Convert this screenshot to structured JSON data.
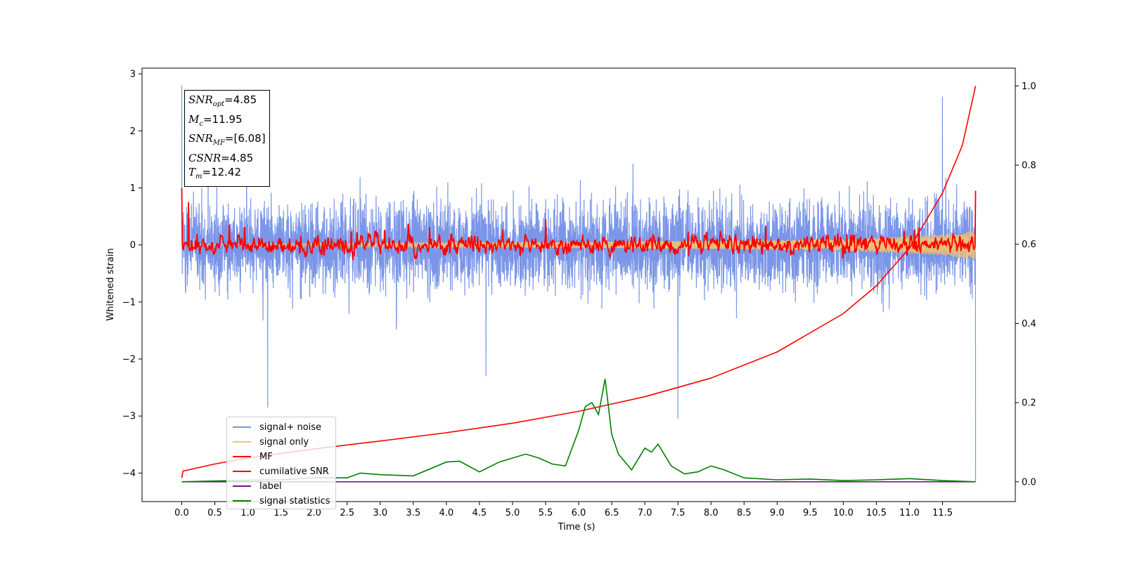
{
  "chart_data": {
    "type": "line",
    "xlabel": "Time (s)",
    "ylabel": "Whitened strain",
    "xlim": [
      -0.6,
      12.6
    ],
    "ylim": [
      -4.5,
      3.1
    ],
    "y2lim": [
      -0.05,
      1.045
    ],
    "xticks": [
      "0.0",
      "0.5",
      "1.0",
      "1.5",
      "2.0",
      "2.5",
      "3.0",
      "3.5",
      "4.0",
      "4.5",
      "5.0",
      "5.5",
      "6.0",
      "6.5",
      "7.0",
      "7.5",
      "8.0",
      "8.5",
      "9.0",
      "9.5",
      "10.0",
      "10.5",
      "11.0",
      "11.5"
    ],
    "yticks": [
      "3",
      "2",
      "1",
      "0",
      "−1",
      "−2",
      "−3",
      "−4"
    ],
    "y2ticks": [
      "1.0",
      "0.8",
      "0.6",
      "0.4",
      "0.2",
      "0.0"
    ],
    "annotation": {
      "snr_opt": "4.85",
      "mc": "11.95",
      "snr_mf": "[6.08]",
      "csnr": "4.85",
      "tm": "12.42"
    },
    "series": [
      {
        "name": "signal+ noise",
        "color": "#7b96e8",
        "axis": "left",
        "t_range": [
          0,
          12.0
        ],
        "amplitude_typical": [
          -1.5,
          1.6
        ],
        "peaks": [
          [
            0.0,
            2.8
          ],
          [
            1.3,
            -2.85
          ],
          [
            4.6,
            -2.3
          ],
          [
            7.5,
            -3.05
          ],
          [
            11.5,
            2.6
          ],
          [
            12.0,
            -4.15
          ]
        ]
      },
      {
        "name": "signal only",
        "color": "#f5c26b",
        "axis": "left",
        "t_range": [
          0,
          12.0
        ],
        "envelope": [
          [
            0,
            0.02
          ],
          [
            6,
            0.05
          ],
          [
            10,
            0.1
          ],
          [
            11.5,
            0.18
          ],
          [
            12.0,
            0.25
          ]
        ]
      },
      {
        "name": "MF",
        "color": "#ff0000",
        "axis": "left",
        "t_range": [
          0,
          12.0
        ],
        "peaks": [
          [
            0.0,
            1.0
          ],
          [
            0.1,
            0.75
          ],
          [
            5.5,
            0.45
          ],
          [
            12.0,
            0.95
          ]
        ]
      },
      {
        "name": "cumilative SNR",
        "color": "#ff0000",
        "axis": "right",
        "x": [
          0,
          0.02,
          0.5,
          1.0,
          2.0,
          3.0,
          4.0,
          5.0,
          6.0,
          7.0,
          8.0,
          9.0,
          10.0,
          10.5,
          11.0,
          11.5,
          11.8,
          12.0
        ],
        "y": [
          0.01,
          0.027,
          0.045,
          0.06,
          0.083,
          0.103,
          0.124,
          0.148,
          0.178,
          0.215,
          0.262,
          0.328,
          0.425,
          0.495,
          0.59,
          0.73,
          0.85,
          1.0
        ]
      },
      {
        "name": "label",
        "color": "#6b1f7b",
        "axis": "right",
        "x": [
          0,
          12.0
        ],
        "y": [
          0.0,
          0.0
        ]
      },
      {
        "name": "signal statistics",
        "color": "#008000",
        "axis": "right",
        "x": [
          0,
          0.5,
          1.0,
          1.5,
          2.0,
          2.5,
          2.7,
          3.0,
          3.5,
          4.0,
          4.2,
          4.5,
          4.8,
          5.0,
          5.2,
          5.4,
          5.6,
          5.8,
          6.0,
          6.1,
          6.2,
          6.3,
          6.4,
          6.5,
          6.6,
          6.8,
          7.0,
          7.1,
          7.2,
          7.4,
          7.6,
          7.8,
          8.0,
          8.2,
          8.5,
          9.0,
          9.5,
          10.0,
          10.5,
          11.0,
          11.5,
          12.0
        ],
        "y": [
          0.0,
          0.002,
          0.004,
          0.005,
          0.01,
          0.01,
          0.022,
          0.018,
          0.015,
          0.05,
          0.052,
          0.025,
          0.05,
          0.06,
          0.07,
          0.06,
          0.045,
          0.04,
          0.13,
          0.19,
          0.2,
          0.17,
          0.26,
          0.12,
          0.07,
          0.03,
          0.085,
          0.075,
          0.095,
          0.04,
          0.02,
          0.025,
          0.04,
          0.03,
          0.01,
          0.005,
          0.007,
          0.003,
          0.005,
          0.008,
          0.003,
          0.0
        ]
      }
    ]
  },
  "legend": {
    "items": [
      "signal+ noise",
      "signal only",
      "MF",
      "cumilative SNR",
      "label",
      "signal statistics"
    ],
    "colors": [
      "#7b96e8",
      "#f5c26b",
      "#ff0000",
      "#ff0000",
      "#6b1f7b",
      "#008000"
    ]
  }
}
